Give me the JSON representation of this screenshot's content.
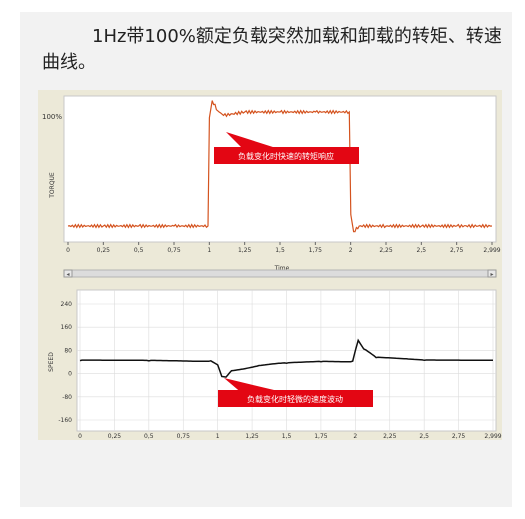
{
  "caption": "1Hz带100%额定负载突然加载和卸载的转矩、转速曲线。",
  "chart_data": [
    {
      "type": "line",
      "ylabel": "TORQUE",
      "xlabel": "Time",
      "xlim": [
        0,
        2.999
      ],
      "xticks": [
        "0",
        "0,25",
        "0,5",
        "0,75",
        "1",
        "1,25",
        "1,5",
        "1,75",
        "2",
        "2,25",
        "2,5",
        "2,75",
        "2,999"
      ],
      "ytick_label": "100%",
      "grid": false,
      "series_color": "#d4531f",
      "annotation": "负载变化时快速的转矩响应",
      "series": [
        {
          "x": [
            0,
            0.25,
            0.5,
            0.75,
            0.99,
            1.0,
            1.02,
            1.06,
            1.1,
            1.25,
            1.5,
            1.75,
            1.99,
            2.0,
            2.02,
            2.06,
            2.25,
            2.5,
            2.75,
            2.999
          ],
          "y": [
            0,
            0,
            0,
            0,
            0,
            95,
            110,
            101,
            97,
            100,
            100,
            100,
            100,
            10,
            -5,
            0,
            0,
            0,
            0,
            0
          ]
        }
      ]
    },
    {
      "type": "line",
      "ylabel": "SPEED",
      "xlim": [
        0,
        2.999
      ],
      "ylim": [
        -160,
        240
      ],
      "yticks": [
        "240",
        "160",
        "80",
        "0",
        "-80",
        "-160"
      ],
      "xticks": [
        "0",
        "0,25",
        "0,5",
        "0,75",
        "1",
        "1,25",
        "1,5",
        "1,75",
        "2",
        "2,25",
        "2,5",
        "2,75",
        "2,999"
      ],
      "grid": true,
      "series_color": "#111111",
      "annotation": "负载变化时轻微的速度波动",
      "series": [
        {
          "x": [
            0,
            0.5,
            0.95,
            1.0,
            1.03,
            1.06,
            1.1,
            1.3,
            1.5,
            1.75,
            1.98,
            2.0,
            2.02,
            2.06,
            2.15,
            2.5,
            2.999
          ],
          "y": [
            45,
            44,
            44,
            30,
            -10,
            -12,
            10,
            28,
            36,
            41,
            43,
            80,
            115,
            85,
            55,
            46,
            46
          ]
        }
      ]
    }
  ]
}
